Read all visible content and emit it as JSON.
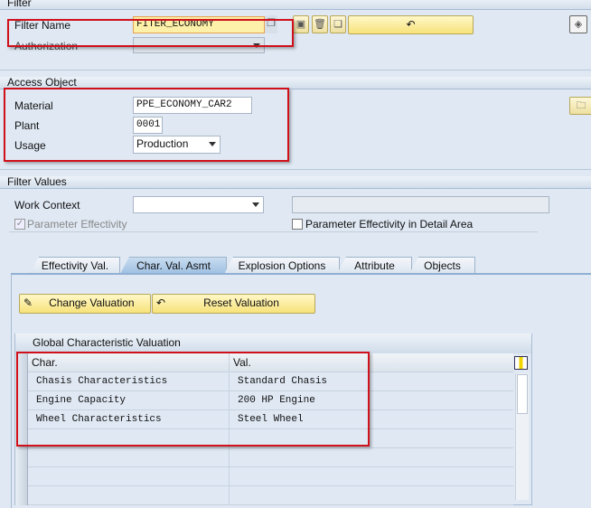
{
  "filter": {
    "header": "Filter",
    "filter_name_label": "Filter Name",
    "filter_name_value": "FITER_ECONOMY",
    "authorization_label": "Authorization",
    "authorization_value": ""
  },
  "access_object": {
    "header": "Access Object",
    "material_label": "Material",
    "material_value": "PPE_ECONOMY_CAR2",
    "plant_label": "Plant",
    "plant_value": "0001",
    "usage_label": "Usage",
    "usage_value": "Production"
  },
  "filter_values": {
    "header": "Filter Values",
    "work_context_label": "Work Context",
    "work_context_value": "",
    "param_effectivity_label": "Parameter Effectivity",
    "param_effectivity_checked": true,
    "param_detail_label": "Parameter Effectivity in Detail Area",
    "param_detail_checked": false
  },
  "tabs": [
    {
      "label": "Effectivity Val.",
      "selected": false
    },
    {
      "label": "Char. Val. Asmt",
      "selected": true
    },
    {
      "label": "Explosion Options",
      "selected": false
    },
    {
      "label": "Attribute",
      "selected": false
    },
    {
      "label": "Objects",
      "selected": false
    }
  ],
  "buttons": {
    "change_valuation": "Change Valuation",
    "reset_valuation": "Reset Valuation"
  },
  "table": {
    "title": "Global Characteristic Valuation",
    "columns": [
      "Char.",
      "Val."
    ],
    "rows": [
      [
        "Chasis Characteristics",
        "Standard Chasis"
      ],
      [
        "Engine Capacity",
        "200 HP Engine"
      ],
      [
        "Wheel Characteristics",
        "Steel Wheel"
      ],
      [
        "",
        ""
      ],
      [
        "",
        ""
      ],
      [
        "",
        ""
      ],
      [
        "",
        ""
      ]
    ]
  },
  "colors": {
    "highlight": "#d0101a",
    "button": "#f7e27a",
    "background": "#dfe8f3"
  }
}
